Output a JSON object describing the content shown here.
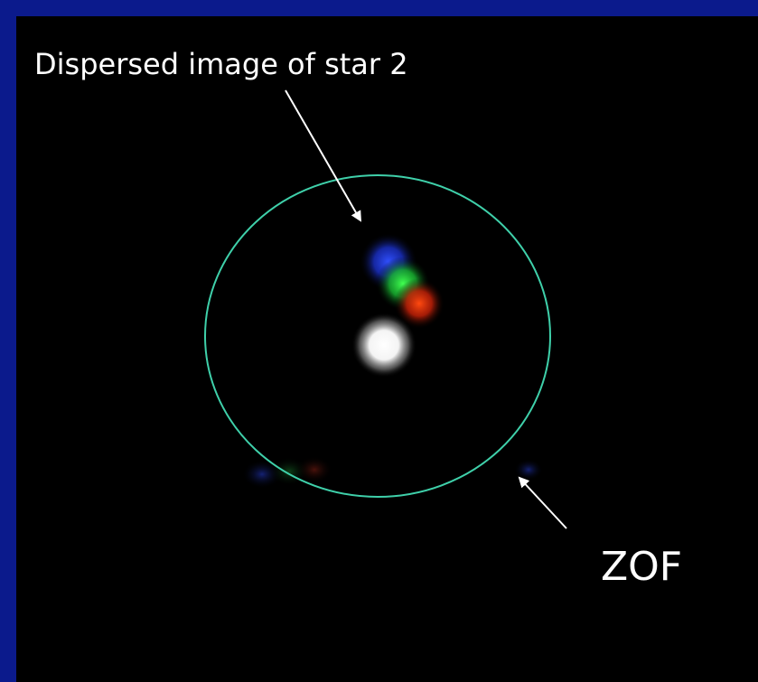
{
  "annotations": {
    "star_label": "Dispersed image of star 2",
    "zof_label": "ZOF"
  }
}
